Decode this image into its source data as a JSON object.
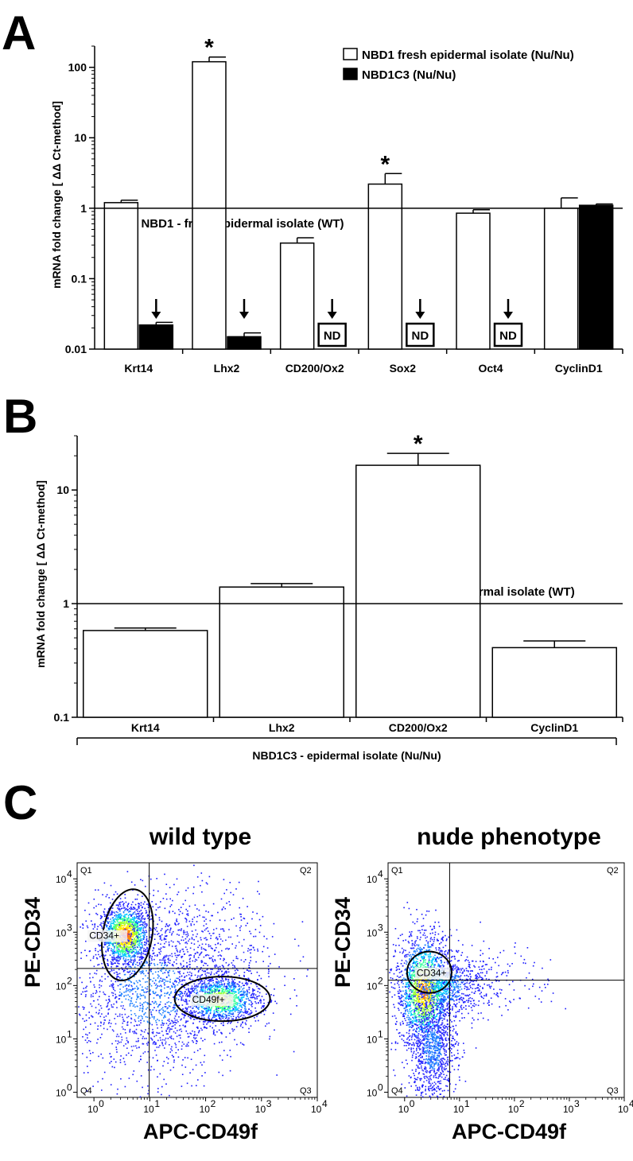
{
  "chart_data": [
    {
      "panel": "A",
      "type": "bar",
      "yscale": "log",
      "ylim": [
        0.01,
        200
      ],
      "ylabel": "mRNA fold change [ ΔΔ Ct-method]",
      "yticks": [
        "0.01",
        "0.1",
        "1",
        "10",
        "100"
      ],
      "categories": [
        "Krt14",
        "Lhx2",
        "CD200/Ox2",
        "Sox2",
        "Oct4",
        "CyclinD1"
      ],
      "series": [
        {
          "name": "NBD1 fresh epidermal isolate (Nu/Nu)",
          "color": "#ffffff",
          "values": [
            1.2,
            120,
            0.32,
            2.2,
            0.85,
            1.0
          ],
          "errors": [
            1.3,
            140,
            0.38,
            3.1,
            0.95,
            1.4
          ]
        },
        {
          "name": "NBD1C3 (Nu/Nu)",
          "color": "#000000",
          "values": [
            0.022,
            0.015,
            null,
            null,
            null,
            1.1
          ],
          "errors": [
            0.024,
            0.017,
            null,
            null,
            null,
            1.15
          ]
        }
      ],
      "reference_label": "NBD1 - fresh epidermal isolate (WT)",
      "reference_value": 1,
      "significance": [
        "",
        "*",
        "",
        "*",
        "",
        ""
      ],
      "down_arrows": [
        true,
        true,
        true,
        true,
        true,
        false
      ],
      "nd_labels": [
        "",
        "",
        "ND",
        "ND",
        "ND",
        ""
      ]
    },
    {
      "panel": "B",
      "type": "bar",
      "yscale": "log",
      "ylim": [
        0.1,
        30
      ],
      "ylabel": "mRNA fold change [ ΔΔ Ct-method]",
      "yticks": [
        "0.1",
        "1",
        "10"
      ],
      "categories": [
        "Krt14",
        "Lhx2",
        "CD200/Ox2",
        "CyclinD1"
      ],
      "values": [
        0.58,
        1.4,
        16.5,
        0.41
      ],
      "errors": [
        0.61,
        1.5,
        21,
        0.47
      ],
      "reference_label": "NBD1C3 - epidermal isolate (WT)",
      "reference_value": 1,
      "significance": [
        "",
        "",
        "*",
        ""
      ],
      "group_label": "NBD1C3 - epidermal isolate (Nu/Nu)"
    },
    {
      "panel": "C",
      "type": "scatter",
      "plots": [
        {
          "title": "wild type",
          "xlabel": "APC-CD49f",
          "ylabel": "PE-CD34",
          "xscale": "log",
          "yscale": "log",
          "xlim": [
            0.5,
            10000
          ],
          "ylim": [
            0.8,
            20000
          ],
          "quadrants": [
            "Q1",
            "Q2",
            "Q3",
            "Q4"
          ],
          "gates": [
            "CD34+",
            "CD49f+"
          ]
        },
        {
          "title": "nude phenotype",
          "xlabel": "APC-CD49f",
          "ylabel": "PE-CD34",
          "xscale": "log",
          "yscale": "log",
          "xlim": [
            0.5,
            10000
          ],
          "ylim": [
            0.8,
            20000
          ],
          "quadrants": [
            "Q1",
            "Q2",
            "Q3",
            "Q4"
          ],
          "gates": [
            "CD34+"
          ]
        }
      ],
      "tick_labels": [
        "10",
        "0",
        "10",
        "1",
        "10",
        "2",
        "10",
        "3",
        "10",
        "4"
      ]
    }
  ],
  "panel_letters": [
    "A",
    "B",
    "C"
  ]
}
